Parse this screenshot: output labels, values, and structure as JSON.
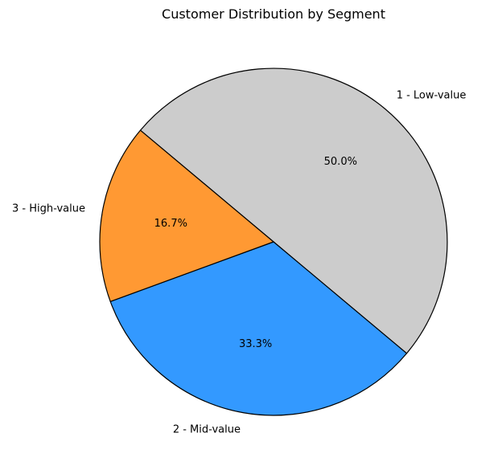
{
  "chart_data": {
    "type": "pie",
    "title": "Customer Distribution by Segment",
    "slices": [
      {
        "label": "1 - Low-value",
        "value": 50.0,
        "pct_label": "50.0%",
        "color": "#cccccc"
      },
      {
        "label": "2 - Mid-value",
        "value": 33.3,
        "pct_label": "33.3%",
        "color": "#3399ff"
      },
      {
        "label": "3 - High-value",
        "value": 16.7,
        "pct_label": "16.7%",
        "color": "#ff9933"
      }
    ],
    "start_angle_deg": 140,
    "direction": "clockwise",
    "edge_color": "#000000"
  }
}
